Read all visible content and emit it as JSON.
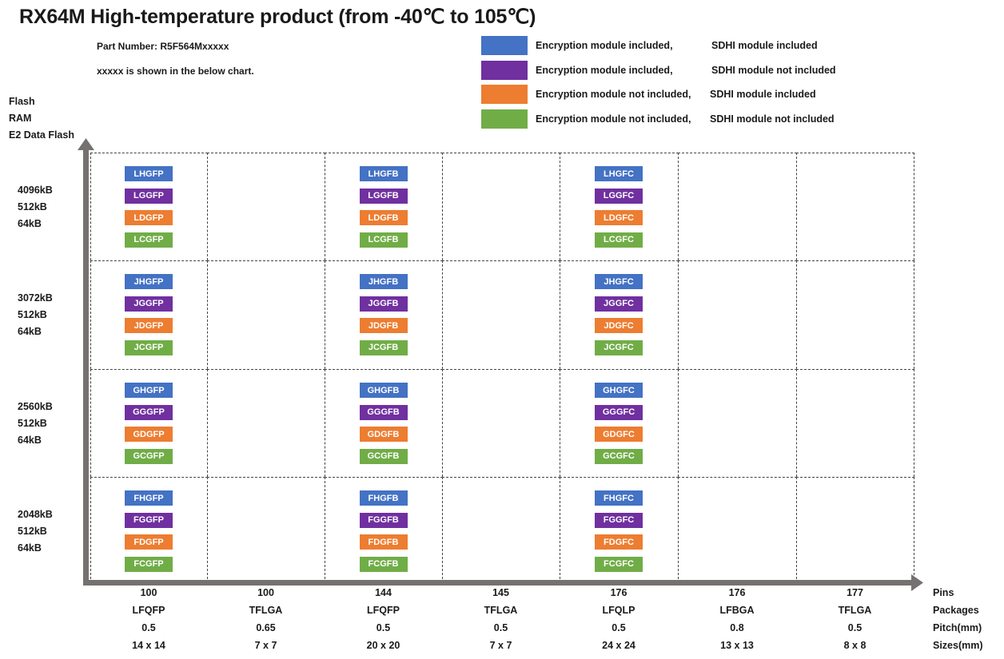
{
  "title": "RX64M High-temperature product (from -40℃ to 105℃)",
  "part_number": "Part Number: R5F564Mxxxxx",
  "note": "xxxxx is shown in the below chart.",
  "legend": [
    {
      "color": "#4472c4",
      "enc": "Encryption module included,",
      "sdhi": "SDHI module included"
    },
    {
      "color": "#7030a0",
      "enc": "Encryption module included,",
      "sdhi": "SDHI module not included"
    },
    {
      "color": "#ed7d31",
      "enc": "Encryption module not included,",
      "sdhi": "SDHI module included"
    },
    {
      "color": "#70ad47",
      "enc": "Encryption module not included,",
      "sdhi": "SDHI module not included"
    }
  ],
  "y_axis": {
    "header": [
      "Flash",
      "RAM",
      "E2 Data Flash"
    ],
    "rows": [
      [
        "4096kB",
        "512kB",
        "64kB"
      ],
      [
        "3072kB",
        "512kB",
        "64kB"
      ],
      [
        "2560kB",
        "512kB",
        "64kB"
      ],
      [
        "2048kB",
        "512kB",
        "64kB"
      ]
    ]
  },
  "x_axis": {
    "row_labels": [
      "Pins",
      "Packages",
      "Pitch(mm)",
      "Sizes(mm)"
    ],
    "columns": [
      [
        "100",
        "LFQFP",
        "0.5",
        "14 x 14"
      ],
      [
        "100",
        "TFLGA",
        "0.65",
        "7 x 7"
      ],
      [
        "144",
        "LFQFP",
        "0.5",
        "20 x 20"
      ],
      [
        "145",
        "TFLGA",
        "0.5",
        "7 x 7"
      ],
      [
        "176",
        "LFQLP",
        "0.5",
        "24 x 24"
      ],
      [
        "176",
        "LFBGA",
        "0.8",
        "13 x 13"
      ],
      [
        "177",
        "TFLGA",
        "0.5",
        "8 x 8"
      ]
    ]
  },
  "colors": {
    "axis": "#767171"
  },
  "cells": [
    {
      "row": 0,
      "col": 0,
      "codes": [
        "LHGFP",
        "LGGFP",
        "LDGFP",
        "LCGFP"
      ]
    },
    {
      "row": 0,
      "col": 2,
      "codes": [
        "LHGFB",
        "LGGFB",
        "LDGFB",
        "LCGFB"
      ]
    },
    {
      "row": 0,
      "col": 4,
      "codes": [
        "LHGFC",
        "LGGFC",
        "LDGFC",
        "LCGFC"
      ]
    },
    {
      "row": 1,
      "col": 0,
      "codes": [
        "JHGFP",
        "JGGFP",
        "JDGFP",
        "JCGFP"
      ]
    },
    {
      "row": 1,
      "col": 2,
      "codes": [
        "JHGFB",
        "JGGFB",
        "JDGFB",
        "JCGFB"
      ]
    },
    {
      "row": 1,
      "col": 4,
      "codes": [
        "JHGFC",
        "JGGFC",
        "JDGFC",
        "JCGFC"
      ]
    },
    {
      "row": 2,
      "col": 0,
      "codes": [
        "GHGFP",
        "GGGFP",
        "GDGFP",
        "GCGFP"
      ]
    },
    {
      "row": 2,
      "col": 2,
      "codes": [
        "GHGFB",
        "GGGFB",
        "GDGFB",
        "GCGFB"
      ]
    },
    {
      "row": 2,
      "col": 4,
      "codes": [
        "GHGFC",
        "GGGFC",
        "GDGFC",
        "GCGFC"
      ]
    },
    {
      "row": 3,
      "col": 0,
      "codes": [
        "FHGFP",
        "FGGFP",
        "FDGFP",
        "FCGFP"
      ]
    },
    {
      "row": 3,
      "col": 2,
      "codes": [
        "FHGFB",
        "FGGFB",
        "FDGFB",
        "FCGFB"
      ]
    },
    {
      "row": 3,
      "col": 4,
      "codes": [
        "FHGFC",
        "FGGFC",
        "FDGFC",
        "FCGFC"
      ]
    }
  ]
}
